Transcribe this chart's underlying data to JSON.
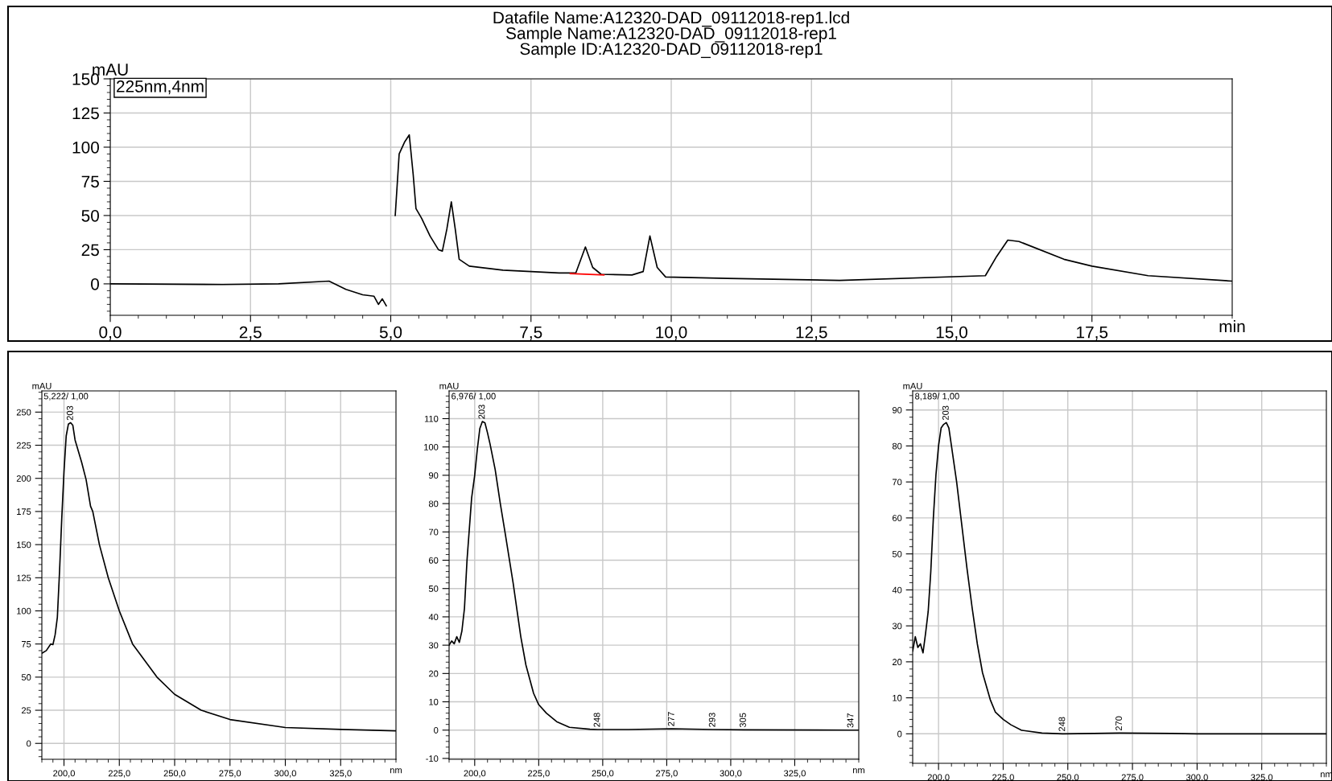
{
  "chart_data": [
    {
      "type": "line",
      "title": "Datafile Name:A12320-DAD_09112018-rep1.lcd\nSample Name:A12320-DAD_09112018-rep1\nSample ID:A12320-DAD_09112018-rep1",
      "xlabel": "min",
      "ylabel": "mAU",
      "annotations": [
        "225nm,4nm"
      ],
      "series": [
        {
          "color": "#000000",
          "x": [
            0,
            2,
            3,
            3.9,
            4.2,
            4.5,
            4.7,
            4.78,
            4.85,
            4.92,
            4.96,
            5.0,
            5.08,
            5.15,
            5.25,
            5.33,
            5.4,
            5.45,
            5.55,
            5.7,
            5.85,
            5.92,
            6.0,
            6.08,
            6.15,
            6.22,
            6.4,
            7,
            8,
            8.3,
            8.47,
            8.6,
            8.75,
            9.3,
            9.5,
            9.62,
            9.75,
            9.9,
            11,
            13,
            15.6,
            15.8,
            16,
            16.2,
            17,
            17.5,
            18.5,
            20
          ],
          "values": [
            0,
            -0.5,
            0,
            2,
            -4,
            -8,
            -9,
            -15,
            -11,
            -16,
            null,
            null,
            50,
            95,
            104,
            109,
            80,
            55,
            48,
            35,
            25,
            24,
            40,
            60,
            40,
            18,
            13,
            10,
            8,
            8,
            27,
            12,
            7,
            6.5,
            9,
            35,
            12,
            5,
            4,
            2.5,
            6,
            20,
            32,
            31,
            18,
            13,
            6,
            2
          ]
        },
        {
          "color": "#ff0000",
          "x": [
            8.2,
            8.8
          ],
          "values": [
            7.5,
            6.5
          ]
        }
      ],
      "xlim": [
        0,
        20
      ],
      "ylim": [
        -23,
        150
      ],
      "xticks": [
        {
          "value": 0,
          "label": "0,0"
        },
        {
          "value": 2.5,
          "label": "2,5"
        },
        {
          "value": 5,
          "label": "5,0"
        },
        {
          "value": 7.5,
          "label": "7,5"
        },
        {
          "value": 10,
          "label": "10,0"
        },
        {
          "value": 12.5,
          "label": "12,5"
        },
        {
          "value": 15,
          "label": "15,0"
        },
        {
          "value": 17.5,
          "label": "17,5"
        }
      ],
      "yticks": [
        0,
        25,
        50,
        75,
        100,
        125,
        150
      ],
      "grid": true,
      "marker": "none",
      "line_style": "solid"
    },
    {
      "type": "line",
      "xlabel": "nm",
      "ylabel": "mAU",
      "annotations": [
        "5,222/ 1,00",
        {
          "text": "203",
          "x": 203,
          "y": 242
        }
      ],
      "series": [
        {
          "color": "#000000",
          "x": [
            190,
            192,
            194,
            195,
            196,
            197,
            198,
            199,
            200,
            201,
            202,
            203,
            204,
            205,
            208,
            210,
            212,
            213,
            216,
            220,
            225,
            231,
            242,
            250,
            262,
            275,
            300,
            325,
            350
          ],
          "values": [
            68,
            70,
            75,
            74.5,
            82,
            95,
            130,
            170,
            205,
            232,
            241,
            242,
            240,
            229,
            212,
            199,
            179,
            175,
            150,
            125,
            100,
            75,
            50,
            37,
            25,
            18,
            12,
            10.5,
            9.5
          ]
        }
      ],
      "xlim": [
        190,
        350
      ],
      "ylim": [
        -12,
        266
      ],
      "xticks": [
        {
          "value": 200,
          "label": "200,0"
        },
        {
          "value": 225,
          "label": "225,0"
        },
        {
          "value": 250,
          "label": "250,0"
        },
        {
          "value": 275,
          "label": "275,0"
        },
        {
          "value": 300,
          "label": "300,0"
        },
        {
          "value": 325,
          "label": "325,0"
        }
      ],
      "yticks": [
        0,
        25,
        50,
        75,
        100,
        125,
        150,
        175,
        200,
        225,
        250
      ],
      "grid": true,
      "marker": "none",
      "line_style": "solid"
    },
    {
      "type": "line",
      "xlabel": "nm",
      "ylabel": "mAU",
      "annotations": [
        "6,976/ 1,00",
        {
          "text": "203",
          "x": 203,
          "y": 109
        },
        {
          "text": "248",
          "x": 248,
          "y": 0.2
        },
        {
          "text": "277",
          "x": 277,
          "y": 0.5
        },
        {
          "text": "293",
          "x": 293,
          "y": 0.2
        },
        {
          "text": "305",
          "x": 305,
          "y": 0.1
        },
        {
          "text": "347",
          "x": 347,
          "y": 0
        }
      ],
      "series": [
        {
          "color": "#000000",
          "x": [
            190,
            191,
            192,
            193,
            194,
            195,
            196,
            197,
            198.8,
            200,
            201,
            202,
            203,
            204,
            205,
            206,
            208,
            210,
            212,
            215,
            218,
            220,
            223,
            225,
            228,
            232,
            237,
            245,
            248,
            260,
            277,
            293,
            305,
            347,
            350
          ],
          "values": [
            30,
            31.5,
            30.5,
            33,
            31,
            35,
            43,
            60,
            82,
            90,
            99,
            106.5,
            109,
            108.5,
            105,
            101,
            92,
            80,
            69,
            52,
            33,
            23,
            13,
            9,
            6,
            3,
            1,
            0.3,
            0.2,
            0.2,
            0.5,
            0.2,
            0.1,
            0,
            0
          ]
        }
      ],
      "xlim": [
        190,
        350
      ],
      "ylim": [
        -10.3,
        119.8
      ],
      "xticks": [
        {
          "value": 200,
          "label": "200,0"
        },
        {
          "value": 225,
          "label": "225,0"
        },
        {
          "value": 250,
          "label": "250,0"
        },
        {
          "value": 275,
          "label": "275,0"
        },
        {
          "value": 300,
          "label": "300,0"
        },
        {
          "value": 325,
          "label": "325,0"
        }
      ],
      "yticks": [
        -10,
        0,
        10,
        20,
        30,
        40,
        50,
        60,
        70,
        80,
        90,
        100,
        110
      ],
      "grid": true,
      "marker": "none",
      "line_style": "solid"
    },
    {
      "type": "line",
      "xlabel": "nm",
      "ylabel": "mAU",
      "annotations": [
        "8,189/ 1,00",
        {
          "text": "203",
          "x": 203,
          "y": 86.5
        },
        {
          "text": "248",
          "x": 248,
          "y": 0
        },
        {
          "text": "270",
          "x": 270,
          "y": 0.2
        }
      ],
      "series": [
        {
          "color": "#000000",
          "x": [
            190,
            191,
            192,
            193,
            194,
            195,
            196,
            197,
            198,
            199,
            200,
            201,
            202,
            203,
            204,
            205,
            207,
            209,
            211,
            213,
            215,
            217,
            220,
            222,
            225,
            228,
            232,
            240,
            248,
            260,
            270,
            290,
            300,
            350
          ],
          "values": [
            23,
            27,
            24,
            25,
            22.5,
            28,
            34,
            45,
            60,
            72,
            80,
            85,
            86,
            86.5,
            85,
            80,
            70,
            58,
            46,
            35,
            25,
            17,
            9.5,
            6,
            4,
            2.5,
            1,
            0.2,
            0,
            0.1,
            0.2,
            0.1,
            0,
            0
          ]
        }
      ],
      "xlim": [
        190,
        350
      ],
      "ylim": [
        -8.2,
        95.3
      ],
      "xticks": [
        {
          "value": 200,
          "label": "200,0"
        },
        {
          "value": 225,
          "label": "225,0"
        },
        {
          "value": 250,
          "label": "250,0"
        },
        {
          "value": 275,
          "label": "275,0"
        },
        {
          "value": 300,
          "label": "300,0"
        },
        {
          "value": 325,
          "label": "325,0"
        }
      ],
      "yticks": [
        0,
        10,
        20,
        30,
        40,
        50,
        60,
        70,
        80,
        90
      ],
      "grid": true,
      "marker": "none",
      "line_style": "solid"
    }
  ]
}
